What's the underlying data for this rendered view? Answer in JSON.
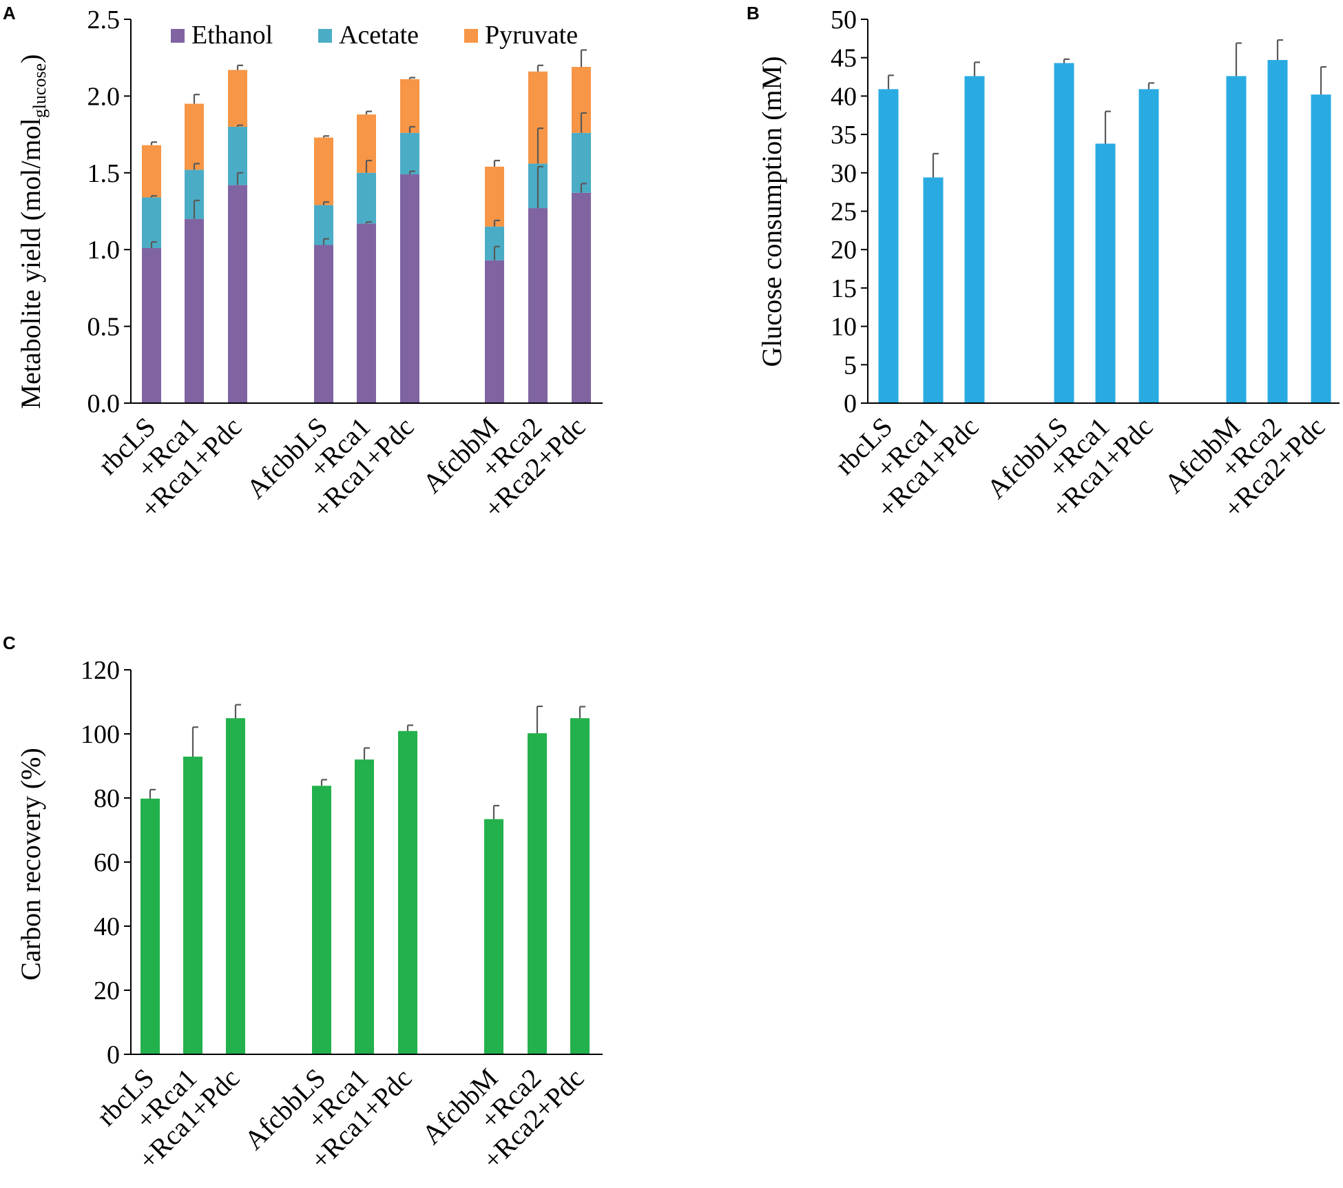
{
  "chart_data": [
    {
      "id": "A",
      "panel_label": "A",
      "type": "bar",
      "stacked": true,
      "categories": [
        "rbcLS",
        "+Rca1",
        "+Rca1+Pdc",
        "AfcbbLS",
        "+Rca1",
        "+Rca1+Pdc",
        "AfcbbM",
        "+Rca2",
        "+Rca2+Pdc"
      ],
      "series": [
        {
          "name": "Ethanol",
          "color": "#8064a2",
          "values": [
            1.01,
            1.2,
            1.42,
            1.03,
            1.17,
            1.49,
            0.93,
            1.27,
            1.37
          ],
          "errors": [
            0.04,
            0.12,
            0.08,
            0.04,
            0.01,
            0.02,
            0.09,
            0.27,
            0.06
          ]
        },
        {
          "name": "Acetate",
          "color": "#4bacc6",
          "values": [
            0.33,
            0.32,
            0.38,
            0.26,
            0.33,
            0.27,
            0.22,
            0.29,
            0.39
          ],
          "errors": [
            0.01,
            0.04,
            0.01,
            0.02,
            0.08,
            0.04,
            0.04,
            0.23,
            0.13
          ]
        },
        {
          "name": "Pyruvate",
          "color": "#f79646",
          "values": [
            0.34,
            0.43,
            0.37,
            0.44,
            0.38,
            0.35,
            0.39,
            0.6,
            0.43
          ],
          "errors": [
            0.02,
            0.06,
            0.03,
            0.01,
            0.02,
            0.01,
            0.04,
            0.04,
            0.11
          ]
        }
      ],
      "ylabel_main": "Metabolite yield (mol/mol",
      "ylabel_sub": "glucose",
      "ylabel_end": ")",
      "ylim": [
        0,
        2.5
      ],
      "yticks": [
        "0.0",
        "0.5",
        "1.0",
        "1.5",
        "2.0",
        "2.5"
      ],
      "legend_position": "top-right"
    },
    {
      "id": "B",
      "panel_label": "B",
      "type": "bar",
      "color": "#29abe2",
      "categories": [
        "rbcLS",
        "+Rca1",
        "+Rca1+Pdc",
        "AfcbbLS",
        "+Rca1",
        "+Rca1+Pdc",
        "AfcbbM",
        "+Rca2",
        "+Rca2+Pdc"
      ],
      "values": [
        40.9,
        29.4,
        42.6,
        44.3,
        33.8,
        40.9,
        42.6,
        44.7,
        40.2
      ],
      "errors": [
        1.8,
        3.1,
        1.8,
        0.5,
        4.2,
        0.8,
        4.3,
        2.6,
        3.6
      ],
      "ylabel": "Glucose consumption (mM)",
      "ylim": [
        0,
        50
      ],
      "yticks": [
        "0",
        "5",
        "10",
        "15",
        "20",
        "25",
        "30",
        "35",
        "40",
        "45",
        "50"
      ]
    },
    {
      "id": "C",
      "panel_label": "C",
      "type": "bar",
      "color": "#22b14c",
      "categories": [
        "rbcLS",
        "+Rca1",
        "+Rca1+Pdc",
        "AfcbbLS",
        "+Rca1",
        "+Rca1+Pdc",
        "AfcbbM",
        "+Rca2",
        "+Rca2+Pdc"
      ],
      "values": [
        79.8,
        92.9,
        104.9,
        83.8,
        92.0,
        100.9,
        73.4,
        100.2,
        104.9
      ],
      "errors": [
        2.8,
        9.2,
        4.2,
        1.9,
        3.6,
        1.8,
        4.2,
        8.4,
        3.6
      ],
      "ylabel": "Carbon recovery (%)",
      "ylim": [
        0,
        120
      ],
      "yticks": [
        "0",
        "20",
        "40",
        "60",
        "80",
        "100",
        "120"
      ]
    }
  ]
}
